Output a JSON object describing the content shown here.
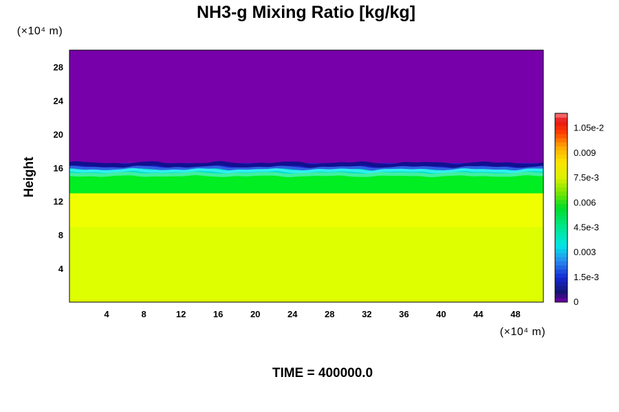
{
  "chart_data": {
    "type": "heatmap",
    "title": "NH3-g Mixing Ratio [kg/kg]",
    "xlabel": "",
    "ylabel": "Height",
    "x_unit": "(×10⁴ m)",
    "y_unit": "(×10⁴ m)",
    "xlim": [
      0,
      51
    ],
    "ylim": [
      0,
      30
    ],
    "x_ticks": [
      4,
      8,
      12,
      16,
      20,
      24,
      28,
      32,
      36,
      40,
      44,
      48
    ],
    "y_ticks": [
      4,
      8,
      12,
      16,
      20,
      24,
      28
    ],
    "bands": [
      {
        "y_from": 0,
        "y_to": 9,
        "value": 0.0082,
        "color": "#ddff00"
      },
      {
        "y_from": 9,
        "y_to": 13,
        "value": 0.0076,
        "color": "#f0ff00"
      },
      {
        "y_from": 13,
        "y_to": 15.2,
        "value": 0.0058,
        "color": "#00ee22"
      },
      {
        "y_from": 15.2,
        "y_to": 16.0,
        "value": 0.0035,
        "color": "#00e0c8"
      },
      {
        "y_from": 16.0,
        "y_to": 16.6,
        "value": 0.0015,
        "color": "#2020d0"
      },
      {
        "y_from": 16.6,
        "y_to": 30,
        "value": 0,
        "color": "#7700aa"
      }
    ],
    "colorbar": {
      "min": 0,
      "max": 0.0114,
      "labels": [
        {
          "value": 0,
          "text": "0"
        },
        {
          "value": 0.0015,
          "text": "1.5e-3"
        },
        {
          "value": 0.003,
          "text": "0.003"
        },
        {
          "value": 0.0045,
          "text": "4.5e-3"
        },
        {
          "value": 0.006,
          "text": "0.006"
        },
        {
          "value": 0.0075,
          "text": "7.5e-3"
        },
        {
          "value": 0.009,
          "text": "0.009"
        },
        {
          "value": 0.0105,
          "text": "1.05e-2"
        }
      ]
    },
    "footer": "TIME = 400000.0"
  }
}
